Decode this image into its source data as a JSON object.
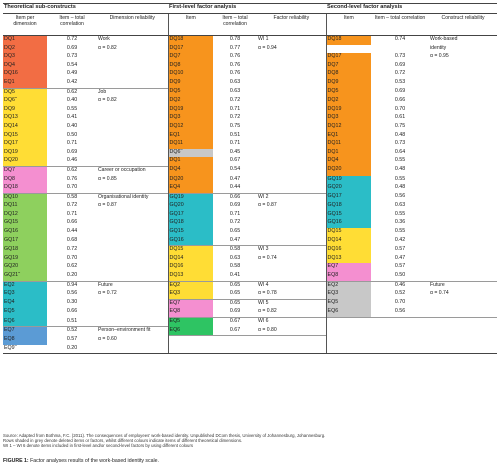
{
  "headers": {
    "group1": "Theoretical sub-constructs",
    "group2": "First-level factor analysis",
    "group3": "Second-level factor analysis",
    "g1_item": "Item per dimension",
    "g1_corr": "Item – total correlation",
    "g1_rel": "Dimension reliability",
    "g2_item": "Item",
    "g2_corr": "Item – total correlation",
    "g2_rel": "Factor reliability",
    "g3_item": "Item",
    "g3_corr": "Item – total correlation",
    "g3_rel": "Construct reliability"
  },
  "colors": {
    "orange": "#f7941d",
    "salmon": "#f26d44",
    "yellow": "#ffdd35",
    "pink": "#f48fd0",
    "green": "#8ed05e",
    "teal": "#2bbdc7",
    "blue": "#5b9bd5",
    "grey": "#c8c8c8",
    "lightgreen": "#2ec463",
    "white": "#ffffff"
  },
  "group1": [
    {
      "item": "DQ1",
      "corr": "0.72",
      "ann": "Work",
      "color": "salmon"
    },
    {
      "item": "DQ2",
      "corr": "0.69",
      "ann": "α = 0.82",
      "color": "salmon"
    },
    {
      "item": "DQ3",
      "corr": "0.73",
      "ann": "",
      "color": "salmon"
    },
    {
      "item": "DQ4",
      "corr": "0.54",
      "ann": "",
      "color": "salmon"
    },
    {
      "item": "DQ16",
      "corr": "0.49",
      "ann": "",
      "color": "salmon"
    },
    {
      "item": "EQ1",
      "corr": "0.42",
      "ann": "",
      "color": "salmon"
    },
    {
      "item": "DQ5",
      "corr": "0.62",
      "ann": "Job",
      "color": "yellow",
      "bt": true
    },
    {
      "item": "DQ6",
      "sup": "a",
      "corr": "0.40",
      "ann": "α = 0.82",
      "color": "yellow"
    },
    {
      "item": "DQ9",
      "corr": "0.55",
      "ann": "",
      "color": "yellow"
    },
    {
      "item": "DQ13",
      "corr": "0.41",
      "ann": "",
      "color": "yellow"
    },
    {
      "item": "DQ14",
      "corr": "0.40",
      "ann": "",
      "color": "yellow"
    },
    {
      "item": "DQ15",
      "corr": "0.50",
      "ann": "",
      "color": "yellow"
    },
    {
      "item": "DQ17",
      "corr": "0.71",
      "ann": "",
      "color": "yellow"
    },
    {
      "item": "DQ19",
      "corr": "0.69",
      "ann": "",
      "color": "yellow"
    },
    {
      "item": "DQ20",
      "corr": "0.46",
      "ann": "",
      "color": "yellow"
    },
    {
      "item": "DQ7",
      "corr": "0.62",
      "ann": "Career or occupation",
      "color": "pink",
      "bt": true
    },
    {
      "item": "DQ8",
      "corr": "0.76",
      "ann": "α = 0.85",
      "color": "pink"
    },
    {
      "item": "DQ18",
      "corr": "0.70",
      "ann": "",
      "color": "pink"
    },
    {
      "item": "DQ10",
      "corr": "0.58",
      "ann": "Organisational identity",
      "color": "green",
      "bt": true
    },
    {
      "item": "DQ11",
      "corr": "0.72",
      "ann": "α = 0.87",
      "color": "green"
    },
    {
      "item": "DQ12",
      "corr": "0.71",
      "ann": "",
      "color": "green"
    },
    {
      "item": "GQ15",
      "corr": "0.66",
      "ann": "",
      "color": "green"
    },
    {
      "item": "GQ16",
      "corr": "0.44",
      "ann": "",
      "color": "green"
    },
    {
      "item": "GQ17",
      "corr": "0.68",
      "ann": "",
      "color": "green"
    },
    {
      "item": "GQ18",
      "corr": "0.72",
      "ann": "",
      "color": "green"
    },
    {
      "item": "GQ19",
      "corr": "0.70",
      "ann": "",
      "color": "green"
    },
    {
      "item": "GQ20",
      "corr": "0.62",
      "ann": "",
      "color": "green"
    },
    {
      "item": "GQ21",
      "sup": "a",
      "corr": "0.20",
      "ann": "",
      "color": "green"
    },
    {
      "item": "EQ2",
      "corr": "0.94",
      "ann": "Future",
      "color": "teal",
      "bt": true
    },
    {
      "item": "EQ3",
      "corr": "0.56",
      "ann": "α = 0.72",
      "color": "teal"
    },
    {
      "item": "EQ4",
      "corr": "0.30",
      "ann": "",
      "color": "teal"
    },
    {
      "item": "EQ5",
      "corr": "0.66",
      "ann": "",
      "color": "teal"
    },
    {
      "item": "EQ6",
      "corr": "0.51",
      "ann": "",
      "color": "teal"
    },
    {
      "item": "EQ7",
      "corr": "0.52",
      "ann": "Person–environment fit",
      "color": "blue",
      "bt": true
    },
    {
      "item": "EQ8",
      "corr": "0.57",
      "ann": "α = 0.60",
      "color": "blue"
    },
    {
      "item": "EQ9",
      "sup": "a",
      "corr": "0.20",
      "ann": "",
      "color": "white"
    }
  ],
  "group2": [
    {
      "item": "DQ18",
      "corr": "0.78",
      "ann": "WI 1",
      "color": "orange"
    },
    {
      "item": "DQ17",
      "corr": "0.77",
      "ann": "α = 0.94",
      "color": "orange"
    },
    {
      "item": "DQ7",
      "corr": "0.76",
      "ann": "",
      "color": "orange"
    },
    {
      "item": "DQ8",
      "corr": "0.76",
      "ann": "",
      "color": "orange"
    },
    {
      "item": "DQ10",
      "corr": "0.76",
      "ann": "",
      "color": "orange"
    },
    {
      "item": "DQ9",
      "corr": "0.63",
      "ann": "",
      "color": "orange"
    },
    {
      "item": "DQ5",
      "corr": "0.63",
      "ann": "",
      "color": "orange"
    },
    {
      "item": "DQ2",
      "corr": "0.72",
      "ann": "",
      "color": "orange"
    },
    {
      "item": "DQ19",
      "corr": "0.71",
      "ann": "",
      "color": "orange"
    },
    {
      "item": "DQ3",
      "corr": "0.72",
      "ann": "",
      "color": "orange"
    },
    {
      "item": "DQ12",
      "corr": "0.75",
      "ann": "",
      "color": "orange"
    },
    {
      "item": "EQ1",
      "corr": "0.51",
      "ann": "",
      "color": "orange"
    },
    {
      "item": "DQ11",
      "corr": "0.71",
      "ann": "",
      "color": "orange"
    },
    {
      "item": "DQ6",
      "sup": "a",
      "corr": "0.45",
      "ann": "",
      "color": "grey"
    },
    {
      "item": "DQ1",
      "corr": "0.67",
      "ann": "",
      "color": "orange"
    },
    {
      "item": "DQ4",
      "corr": "0.54",
      "ann": "",
      "color": "orange"
    },
    {
      "item": "DQ20",
      "corr": "0.47",
      "ann": "",
      "color": "orange"
    },
    {
      "item": "EQ4",
      "corr": "0.44",
      "ann": "",
      "color": "orange"
    },
    {
      "item": "GQ19",
      "corr": "0.66",
      "ann": "WI 2",
      "color": "teal",
      "bt": true
    },
    {
      "item": "GQ20",
      "corr": "0.69",
      "ann": "α = 0.87",
      "color": "teal"
    },
    {
      "item": "GQ17",
      "corr": "0.71",
      "ann": "",
      "color": "teal"
    },
    {
      "item": "GQ18",
      "corr": "0.72",
      "ann": "",
      "color": "teal"
    },
    {
      "item": "GQ15",
      "corr": "0.65",
      "ann": "",
      "color": "teal"
    },
    {
      "item": "GQ16",
      "corr": "0.47",
      "ann": "",
      "color": "teal"
    },
    {
      "item": "DQ15",
      "corr": "0.58",
      "ann": "WI 3",
      "color": "yellow",
      "bt": true
    },
    {
      "item": "DQ14",
      "corr": "0.63",
      "ann": "α = 0.74",
      "color": "yellow"
    },
    {
      "item": "DQ16",
      "corr": "0.58",
      "ann": "",
      "color": "yellow"
    },
    {
      "item": "DQ13",
      "corr": "0.41",
      "ann": "",
      "color": "yellow"
    },
    {
      "item": "EQ2",
      "corr": "0.65",
      "ann": "WI 4",
      "color": "yellow",
      "bt": true
    },
    {
      "item": "EQ3",
      "corr": "0.65",
      "ann": "α = 0.78",
      "color": "yellow"
    },
    {
      "item": "EQ7",
      "corr": "0.65",
      "ann": "WI 5",
      "color": "pink",
      "bt": true
    },
    {
      "item": "EQ8",
      "corr": "0.69",
      "ann": "α = 0.82",
      "color": "pink"
    },
    {
      "item": "EQ5",
      "corr": "0.67",
      "ann": "WI 6",
      "color": "lightgreen",
      "bt": true
    },
    {
      "item": "EQ6",
      "corr": "0.67",
      "ann": "α = 0.80",
      "color": "lightgreen"
    },
    {
      "item": "",
      "corr": "",
      "ann": "",
      "color": "white",
      "bt": true
    },
    {
      "item": "",
      "corr": "",
      "ann": "",
      "color": "white"
    }
  ],
  "group3": [
    {
      "item": "DQ18",
      "corr": "0.74",
      "ann": "Work-based",
      "color": "orange"
    },
    {
      "item": "",
      "corr": "",
      "ann": "identity",
      "color": "white"
    },
    {
      "item": "DQ17",
      "corr": "0.73",
      "ann": "α = 0.95",
      "color": "orange"
    },
    {
      "item": "DQ7",
      "corr": "0.69",
      "ann": "",
      "color": "orange"
    },
    {
      "item": "DQ8",
      "corr": "0.72",
      "ann": "",
      "color": "orange"
    },
    {
      "item": "DQ9",
      "corr": "0.53",
      "ann": "",
      "color": "orange"
    },
    {
      "item": "DQ5",
      "corr": "0.69",
      "ann": "",
      "color": "orange"
    },
    {
      "item": "DQ2",
      "corr": "0.66",
      "ann": "",
      "color": "orange"
    },
    {
      "item": "DQ19",
      "corr": "0.70",
      "ann": "",
      "color": "orange"
    },
    {
      "item": "DQ3",
      "corr": "0.61",
      "ann": "",
      "color": "orange"
    },
    {
      "item": "DQ12",
      "corr": "0.75",
      "ann": "",
      "color": "orange"
    },
    {
      "item": "EQ1",
      "corr": "0.48",
      "ann": "",
      "color": "orange"
    },
    {
      "item": "DQ11",
      "corr": "0.73",
      "ann": "",
      "color": "orange"
    },
    {
      "item": "DQ1",
      "corr": "0.64",
      "ann": "",
      "color": "orange"
    },
    {
      "item": "DQ4",
      "corr": "0.55",
      "ann": "",
      "color": "orange"
    },
    {
      "item": "DQ20",
      "corr": "0.48",
      "ann": "",
      "color": "orange"
    },
    {
      "item": "GQ19",
      "corr": "0.55",
      "ann": "",
      "color": "teal"
    },
    {
      "item": "GQ20",
      "corr": "0.48",
      "ann": "",
      "color": "teal"
    },
    {
      "item": "GQ17",
      "corr": "0.56",
      "ann": "",
      "color": "teal"
    },
    {
      "item": "GQ18",
      "corr": "0.63",
      "ann": "",
      "color": "teal"
    },
    {
      "item": "GQ15",
      "corr": "0.55",
      "ann": "",
      "color": "teal"
    },
    {
      "item": "GQ16",
      "corr": "0.36",
      "ann": "",
      "color": "teal"
    },
    {
      "item": "DQ15",
      "corr": "0.55",
      "ann": "",
      "color": "yellow"
    },
    {
      "item": "DQ14",
      "corr": "0.42",
      "ann": "",
      "color": "yellow"
    },
    {
      "item": "DQ16",
      "corr": "0.57",
      "ann": "",
      "color": "yellow"
    },
    {
      "item": "DQ13",
      "corr": "0.47",
      "ann": "",
      "color": "yellow"
    },
    {
      "item": "EQ7",
      "corr": "0.57",
      "ann": "",
      "color": "pink"
    },
    {
      "item": "EQ8",
      "corr": "0.50",
      "ann": "",
      "color": "pink"
    },
    {
      "item": "EQ2",
      "corr": "0.46",
      "ann": "Future",
      "color": "grey",
      "bt": true
    },
    {
      "item": "EQ3",
      "corr": "0.52",
      "ann": "α = 0.74",
      "color": "grey"
    },
    {
      "item": "EQ5",
      "corr": "0.70",
      "ann": "",
      "color": "grey"
    },
    {
      "item": "EQ6",
      "corr": "0.56",
      "ann": "",
      "color": "grey"
    },
    {
      "item": "",
      "corr": "",
      "ann": "",
      "color": "white",
      "bt": true
    },
    {
      "item": "",
      "corr": "",
      "ann": "",
      "color": "white"
    },
    {
      "item": "",
      "corr": "",
      "ann": "",
      "color": "white"
    },
    {
      "item": "",
      "corr": "",
      "ann": "",
      "color": "white"
    }
  ],
  "notes": {
    "source": "Source: Adapted from Bothma, F.C. (2011). The consequences of employees' work-based identity. Unpublished DCom thesis, University of Johannesburg, Johannesburg.",
    "line2": "Rows shaded in grey denote deleted items or factors, whilst different colours indicate items of different theoretical dimensions.",
    "line3": "WI 1 – WI 6 denote items included in first-level and/or second-level factors by using different colours"
  },
  "caption": {
    "label": "FIGURE 1:",
    "text": " Factor analyses results of the work-based identity scale."
  }
}
